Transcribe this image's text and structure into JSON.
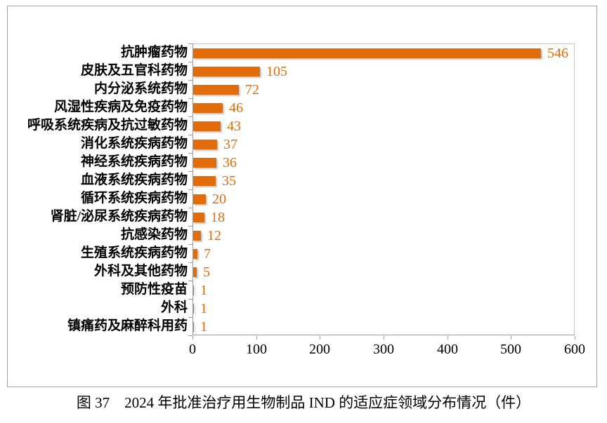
{
  "figure": {
    "caption": "图 37　2024 年批准治疗用生物制品 IND 的适应症领域分布情况（件）"
  },
  "chart_data": {
    "type": "bar",
    "orientation": "horizontal",
    "title": "",
    "xlabel": "",
    "ylabel": "",
    "categories": [
      "抗肿瘤药物",
      "皮肤及五官科药物",
      "内分泌系统药物",
      "风湿性疾病及免疫药物",
      "呼吸系统疾病及抗过敏药物",
      "消化系统疾病药物",
      "神经系统疾病药物",
      "血液系统疾病药物",
      "循环系统疾病药物",
      "肾脏/泌尿系统疾病药物",
      "抗感染药物",
      "生殖系统疾病药物",
      "外科及其他药物",
      "预防性疫苗",
      "外科",
      "镇痛药及麻醉科用药"
    ],
    "values": [
      546,
      105,
      72,
      46,
      43,
      37,
      36,
      35,
      20,
      18,
      12,
      7,
      5,
      1,
      1,
      1
    ],
    "xlim": [
      0,
      600
    ],
    "x_ticks": [
      0,
      100,
      200,
      300,
      400,
      500,
      600
    ],
    "grid": false,
    "legend": "none",
    "data_labels": true,
    "colors": {
      "bar": "#e36c0a",
      "value_label": "#e36c0a",
      "axis": "#9a9a9a",
      "plot_border": "#c6c6c6",
      "frame_border": "#a0a0a0",
      "text": "#000000"
    }
  }
}
